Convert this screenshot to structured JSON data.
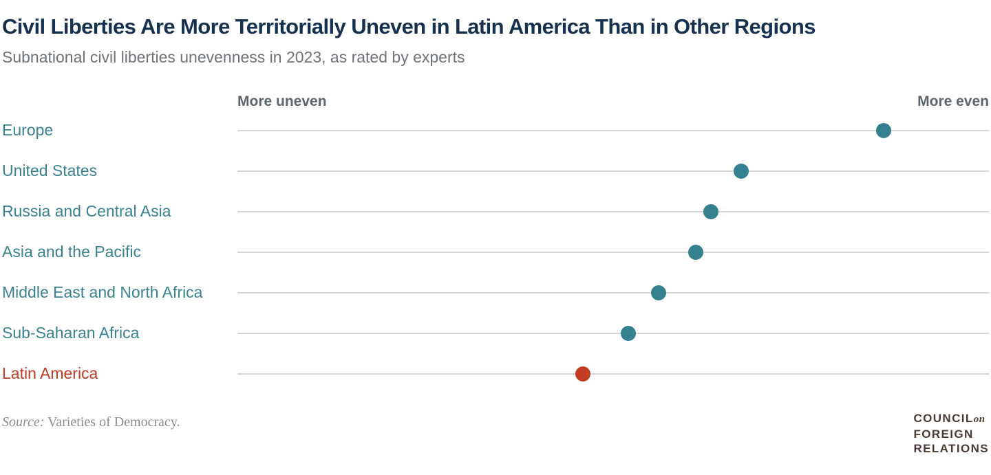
{
  "header": {
    "title": "Civil Liberties Are More Territorially Uneven in Latin America Than in Other Regions",
    "subtitle": "Subnational civil liberties unevenness in 2023, as rated by experts"
  },
  "chart_data": {
    "type": "scatter",
    "variant": "horizontal-dot-plot",
    "title": "Civil Liberties Are More Territorially Uneven in Latin America Than in Other Regions",
    "subtitle": "Subnational civil liberties unevenness in 2023, as rated by experts",
    "x_axis": {
      "left_label": "More uneven",
      "right_label": "More even",
      "range": [
        0,
        1
      ],
      "numeric_ticks_visible": false,
      "grid": "one horizontal rule per category"
    },
    "categories": [
      "Europe",
      "United States",
      "Russia and Central Asia",
      "Asia and the Pacific",
      "Middle East and North Africa",
      "Sub-Saharan Africa",
      "Latin America"
    ],
    "series": [
      {
        "name": "Subnational civil liberties unevenness, 2023",
        "values": [
          0.86,
          0.67,
          0.63,
          0.61,
          0.56,
          0.52,
          0.46
        ]
      }
    ],
    "points": [
      {
        "label": "Europe",
        "value": 0.86,
        "highlight": false
      },
      {
        "label": "United States",
        "value": 0.67,
        "highlight": false
      },
      {
        "label": "Russia and Central Asia",
        "value": 0.63,
        "highlight": false
      },
      {
        "label": "Asia and the Pacific",
        "value": 0.61,
        "highlight": false
      },
      {
        "label": "Middle East and North Africa",
        "value": 0.56,
        "highlight": false
      },
      {
        "label": "Sub-Saharan Africa",
        "value": 0.52,
        "highlight": false
      },
      {
        "label": "Latin America",
        "value": 0.46,
        "highlight": true
      }
    ],
    "legend": "none",
    "colors": {
      "dot_default": "#35808e",
      "dot_highlight": "#c23b22",
      "rule": "#d5d5d5",
      "title": "#16304f",
      "subtitle": "#6e7378",
      "axis_label": "#5d656d",
      "category_label": "#39828f",
      "category_label_highlight": "#c23b22"
    }
  },
  "footer": {
    "source_prefix": "Source:",
    "source_text": " Varieties of Democracy."
  },
  "logo": {
    "line1_main": "COUNCIL",
    "line1_suffix": "on",
    "line2": "FOREIGN",
    "line3": "RELATIONS"
  }
}
